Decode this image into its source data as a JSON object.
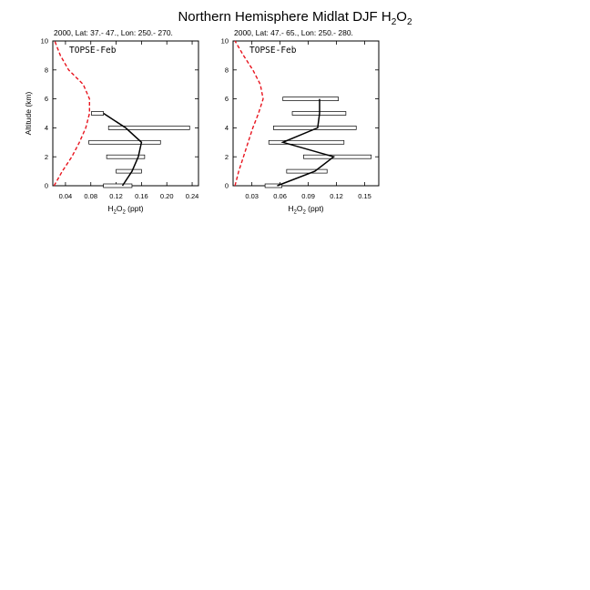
{
  "figure": {
    "title_main": "Northern Hemisphere Midlat DJF H",
    "title_sub1": "2",
    "title_mid": "O",
    "title_sub2": "2"
  },
  "chart_data": [
    {
      "type": "line",
      "subtitle": "2000, Lat: 37.- 47., Lon: 250.- 270.",
      "campaign_label": "TOPSE-Feb",
      "xlabel": "H2O2 (ppt)",
      "ylabel": "Altitude (km)",
      "xlim": [
        0.02,
        0.25
      ],
      "ylim": [
        0,
        10
      ],
      "xticks": [
        "0.04",
        "0.08",
        "0.12",
        "0.16",
        "0.20",
        "0.24"
      ],
      "yticks": [
        "0",
        "2",
        "4",
        "6",
        "8",
        "10"
      ],
      "model_series": {
        "color": "#e8141e",
        "style": "dashed",
        "points": [
          [
            0.022,
            0
          ],
          [
            0.035,
            1
          ],
          [
            0.05,
            2
          ],
          [
            0.062,
            3
          ],
          [
            0.072,
            4
          ],
          [
            0.078,
            5
          ],
          [
            0.078,
            6
          ],
          [
            0.068,
            7
          ],
          [
            0.045,
            8
          ],
          [
            0.032,
            9
          ],
          [
            0.023,
            10
          ]
        ]
      },
      "obs_series": {
        "color": "#000000",
        "style": "solid",
        "points": [
          [
            0.13,
            0
          ],
          [
            0.145,
            1
          ],
          [
            0.155,
            2
          ],
          [
            0.16,
            3
          ],
          [
            0.135,
            4
          ],
          [
            0.1,
            5
          ]
        ]
      },
      "obs_ranges": [
        {
          "alt": 0,
          "min": 0.1,
          "max": 0.145
        },
        {
          "alt": 1,
          "min": 0.12,
          "max": 0.16
        },
        {
          "alt": 2,
          "min": 0.105,
          "max": 0.165
        },
        {
          "alt": 3,
          "min": 0.077,
          "max": 0.19
        },
        {
          "alt": 4,
          "min": 0.108,
          "max": 0.236
        },
        {
          "alt": 5,
          "min": 0.081,
          "max": 0.1
        }
      ]
    },
    {
      "type": "line",
      "subtitle": "2000, Lat: 47.- 65., Lon: 250.- 280.",
      "campaign_label": "TOPSE-Feb",
      "xlabel": "H2O2 (ppt)",
      "ylabel": "",
      "xlim": [
        0.01,
        0.165
      ],
      "ylim": [
        0,
        10
      ],
      "xticks": [
        "0.03",
        "0.06",
        "0.09",
        "0.12",
        "0.15"
      ],
      "yticks": [
        "0",
        "2",
        "4",
        "6",
        "8",
        "10"
      ],
      "model_series": {
        "color": "#e8141e",
        "style": "dashed",
        "points": [
          [
            0.012,
            0
          ],
          [
            0.016,
            1
          ],
          [
            0.021,
            2
          ],
          [
            0.026,
            3
          ],
          [
            0.031,
            4
          ],
          [
            0.037,
            5
          ],
          [
            0.042,
            6
          ],
          [
            0.039,
            7
          ],
          [
            0.031,
            8
          ],
          [
            0.021,
            9
          ],
          [
            0.012,
            10
          ]
        ]
      },
      "obs_series": {
        "color": "#000000",
        "style": "solid",
        "points": [
          [
            0.057,
            0
          ],
          [
            0.097,
            1
          ],
          [
            0.117,
            2
          ],
          [
            0.063,
            3
          ],
          [
            0.1,
            4
          ],
          [
            0.102,
            5
          ],
          [
            0.102,
            6
          ]
        ]
      },
      "obs_ranges": [
        {
          "alt": 0,
          "min": 0.044,
          "max": 0.062
        },
        {
          "alt": 1,
          "min": 0.067,
          "max": 0.11
        },
        {
          "alt": 2,
          "min": 0.085,
          "max": 0.157
        },
        {
          "alt": 3,
          "min": 0.048,
          "max": 0.128
        },
        {
          "alt": 4,
          "min": 0.053,
          "max": 0.141
        },
        {
          "alt": 5,
          "min": 0.073,
          "max": 0.13
        },
        {
          "alt": 6,
          "min": 0.063,
          "max": 0.122
        }
      ]
    }
  ]
}
